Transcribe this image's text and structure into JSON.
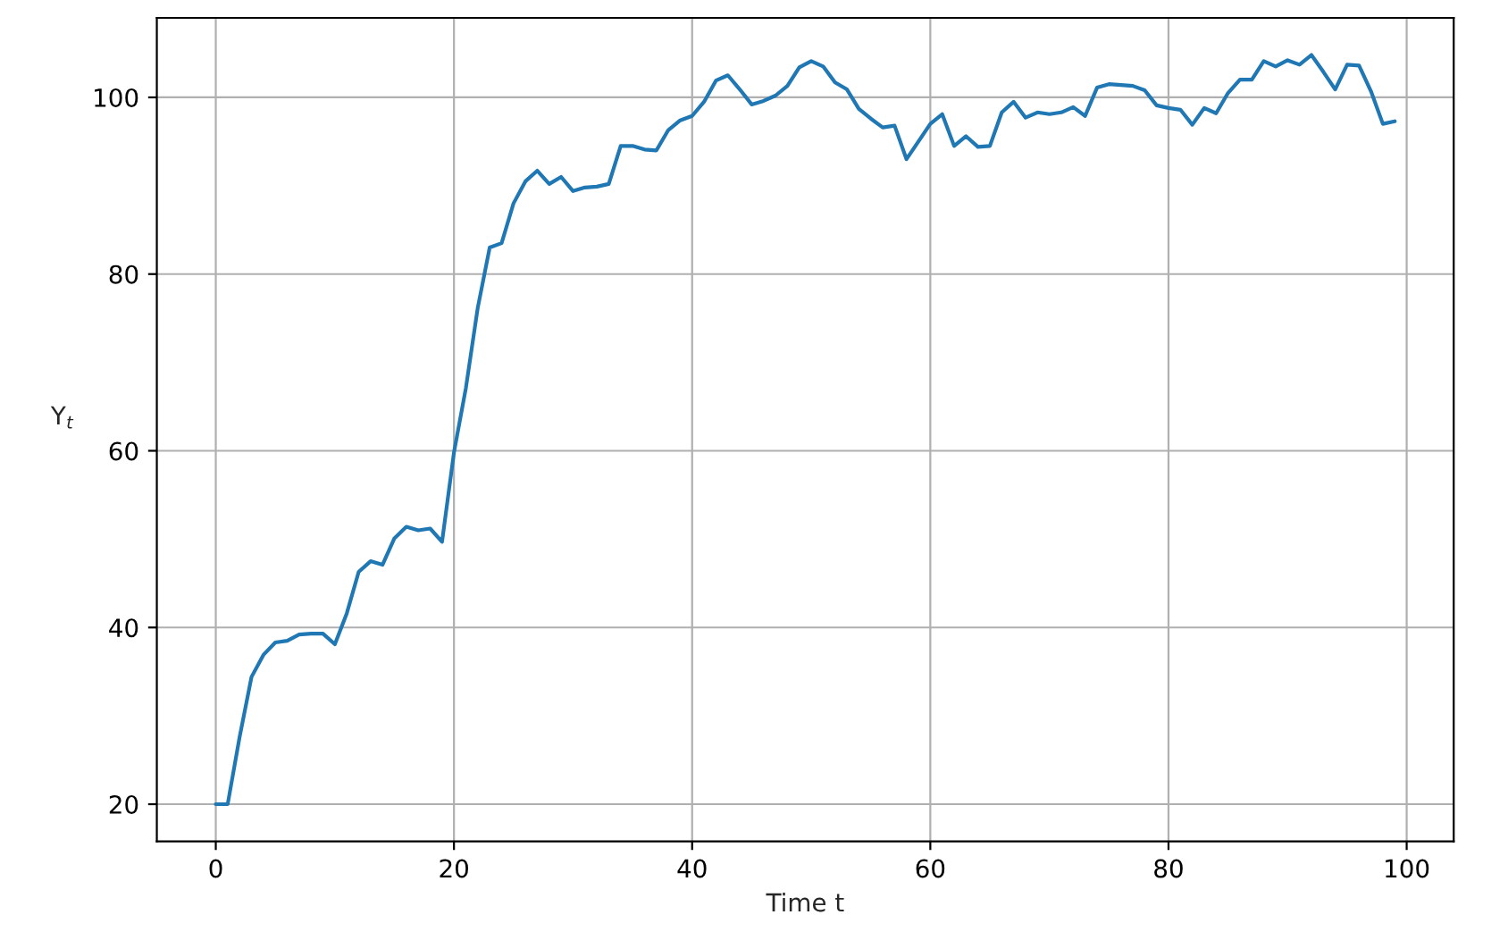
{
  "chart_data": {
    "type": "line",
    "xlabel": "Time t",
    "ylabel": "Y$_{t}$",
    "x": [
      0,
      1,
      2,
      3,
      4,
      5,
      6,
      7,
      8,
      9,
      10,
      11,
      12,
      13,
      14,
      15,
      16,
      17,
      18,
      19,
      20,
      21,
      22,
      23,
      24,
      25,
      26,
      27,
      28,
      29,
      30,
      31,
      32,
      33,
      34,
      35,
      36,
      37,
      38,
      39,
      40,
      41,
      42,
      43,
      44,
      45,
      46,
      47,
      48,
      49,
      50,
      51,
      52,
      53,
      54,
      55,
      56,
      57,
      58,
      59,
      60,
      61,
      62,
      63,
      64,
      65,
      66,
      67,
      68,
      69,
      70,
      71,
      72,
      73,
      74,
      75,
      76,
      77,
      78,
      79,
      80,
      81,
      82,
      83,
      84,
      85,
      86,
      87,
      88,
      89,
      90,
      91,
      92,
      93,
      94,
      95,
      96,
      97,
      98,
      99
    ],
    "series": [
      {
        "color": "#1f77b4",
        "values": [
          20.0,
          20.0,
          27.6,
          34.4,
          36.9,
          38.3,
          38.5,
          39.2,
          39.3,
          39.3,
          38.1,
          41.6,
          46.3,
          47.5,
          47.1,
          50.1,
          51.4,
          51.0,
          51.2,
          49.7,
          59.8,
          67.1,
          76.2,
          83.0,
          83.5,
          88.0,
          90.5,
          91.7,
          90.2,
          91.0,
          89.4,
          89.8,
          89.9,
          90.2,
          94.5,
          94.5,
          94.1,
          94.0,
          96.3,
          97.4,
          97.9,
          99.5,
          101.9,
          102.5,
          100.9,
          99.2,
          99.6,
          100.2,
          101.3,
          103.4,
          104.1,
          103.5,
          101.7,
          100.9,
          98.7,
          97.6,
          96.6,
          96.8,
          93.0,
          95.0,
          97.0,
          98.1,
          94.5,
          95.6,
          94.4,
          94.5,
          98.3,
          99.5,
          97.7,
          98.3,
          98.1,
          98.3,
          98.9,
          97.9,
          101.1,
          101.5,
          101.4,
          101.3,
          100.8,
          99.1,
          98.8,
          98.6,
          96.9,
          98.8,
          98.2,
          100.5,
          102.0,
          102.0,
          104.1,
          103.5,
          104.2,
          103.7,
          104.8,
          102.9,
          100.9,
          103.7,
          103.6,
          100.7,
          97.0,
          97.3
        ]
      }
    ],
    "xlim": [
      -4.95,
      103.95
    ],
    "ylim": [
      15.8,
      109.0
    ],
    "xticks": [
      0,
      20,
      40,
      60,
      80,
      100
    ],
    "yticks": [
      20,
      40,
      60,
      80,
      100
    ],
    "grid": true
  }
}
